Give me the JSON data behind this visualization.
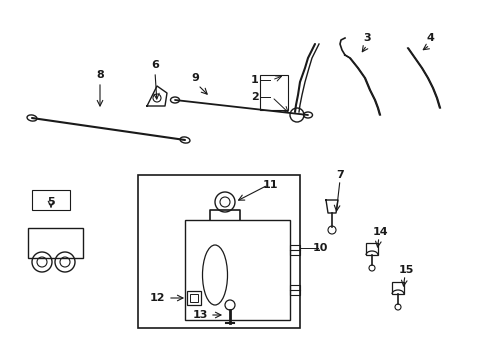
{
  "bg_color": "#ffffff",
  "fig_width": 4.89,
  "fig_height": 3.6,
  "dpi": 100,
  "line_color": "#1a1a1a"
}
